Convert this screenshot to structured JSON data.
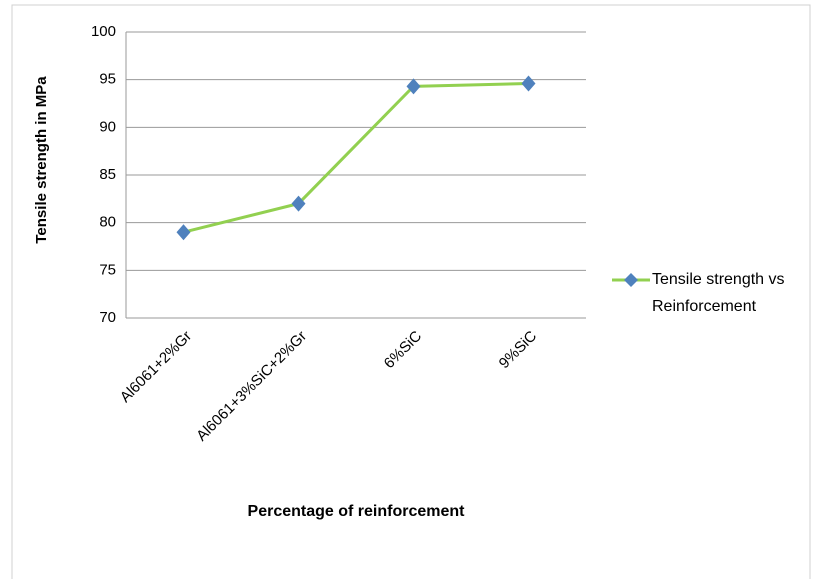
{
  "chart_data": {
    "type": "line",
    "x_label": "Percentage of reinforcement",
    "y_label": "Tensile strength in MPa",
    "categories": [
      "Al6061+2%Gr",
      "Al6061+3%SiC+2%Gr",
      "6%SiC",
      "9%SiC"
    ],
    "series": [
      {
        "name": "Tensile strength vs Reinforcement",
        "color": "#92d050",
        "marker_color": "#4f81bd",
        "values": [
          79,
          82,
          94.3,
          94.6
        ]
      }
    ],
    "ylim": [
      70,
      100
    ],
    "yticks": [
      70,
      75,
      80,
      85,
      90,
      95,
      100
    ],
    "grid": true,
    "legend": "right"
  }
}
